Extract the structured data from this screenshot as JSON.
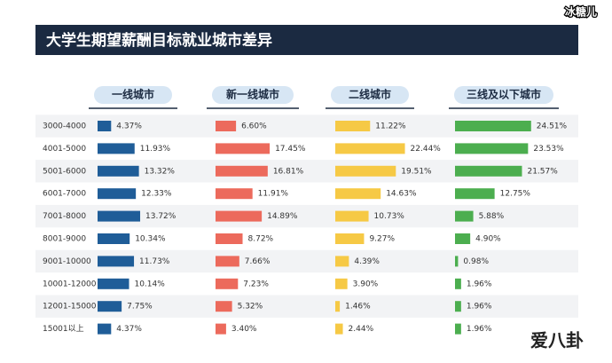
{
  "chart_data": {
    "type": "bar",
    "orientation": "horizontal",
    "title": "大学生期望薪酬目标就业城市差异",
    "categories": [
      "3000-4000",
      "4001-5000",
      "5001-6000",
      "6001-7000",
      "7001-8000",
      "8001-9000",
      "9001-10000",
      "10001-12000",
      "12001-15000",
      "15001以上"
    ],
    "xlim": [
      0,
      25
    ],
    "series": [
      {
        "name": "一线城市",
        "color": "#1f5d98",
        "values": [
          4.37,
          11.93,
          13.32,
          12.33,
          13.72,
          10.34,
          11.73,
          10.14,
          7.75,
          4.37
        ],
        "value_labels": [
          "4.37%",
          "11.93%",
          "13.32%",
          "12.33%",
          "13.72%",
          "10.34%",
          "11.73%",
          "10.14%",
          "7.75%",
          "4.37%"
        ]
      },
      {
        "name": "新一线城市",
        "color": "#ec6a5c",
        "values": [
          6.6,
          17.45,
          16.81,
          11.91,
          14.89,
          8.72,
          7.66,
          7.23,
          5.32,
          3.4
        ],
        "value_labels": [
          "6.60%",
          "17.45%",
          "16.81%",
          "11.91%",
          "14.89%",
          "8.72%",
          "7.66%",
          "7.23%",
          "5.32%",
          "3.40%"
        ]
      },
      {
        "name": "二线城市",
        "color": "#f6c945",
        "values": [
          11.22,
          22.44,
          19.51,
          14.63,
          10.73,
          9.27,
          4.39,
          3.9,
          1.46,
          2.44
        ],
        "value_labels": [
          "11.22%",
          "22.44%",
          "19.51%",
          "14.63%",
          "10.73%",
          "9.27%",
          "4.39%",
          "3.90%",
          "1.46%",
          "2.44%"
        ]
      },
      {
        "name": "三线及以下城市",
        "color": "#4cae4f",
        "values": [
          24.51,
          23.53,
          21.57,
          12.75,
          5.88,
          4.9,
          0.98,
          1.96,
          1.96,
          1.96
        ],
        "value_labels": [
          "24.51%",
          "23.53%",
          "21.57%",
          "12.75%",
          "5.88%",
          "4.90%",
          "0.98%",
          "1.96%",
          "1.96%",
          "1.96%"
        ]
      }
    ]
  },
  "watermarks": [
    "冰糖儿",
    "爱八卦"
  ]
}
